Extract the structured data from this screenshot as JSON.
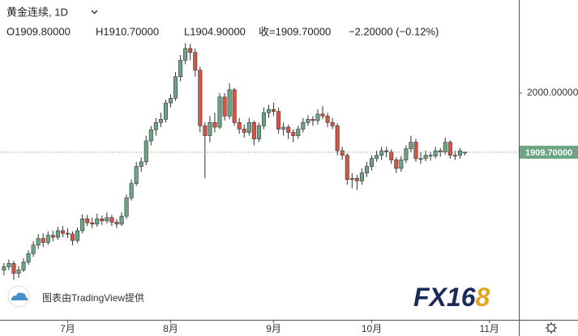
{
  "chart_data": {
    "type": "candlestick",
    "title": "黄金连续, 1D",
    "ohlc_header": [
      "O1909.80000",
      "H1910.70000",
      "L1904.90000",
      "收=1909.70000",
      "−2.20000 (−0.12%)"
    ],
    "attribution": "图表由TradingView提供",
    "logo": [
      "FX16",
      "8"
    ],
    "up_color": "#6ba583",
    "down_color": "#d75442",
    "open": [
      1730,
      1735,
      1740,
      1725,
      1730,
      1742,
      1755,
      1768,
      1778,
      1772,
      1783,
      1780,
      1790,
      1786,
      1785,
      1775,
      1790,
      1808,
      1802,
      1800,
      1808,
      1805,
      1810,
      1803,
      1800,
      1812,
      1840,
      1862,
      1888,
      1895,
      1927,
      1944,
      1955,
      1960,
      1985,
      1992,
      2025,
      2050,
      2068,
      2062,
      2035,
      1950,
      1935,
      1955,
      1948,
      1994,
      1965,
      2005,
      1955,
      1945,
      1940,
      1955,
      1930,
      1950,
      1970,
      1975,
      1972,
      1945,
      1948,
      1940,
      1935,
      1945,
      1955,
      1960,
      1958,
      1968,
      1965,
      1955,
      1950,
      1912,
      1905,
      1868,
      1870,
      1866,
      1878,
      1888,
      1900,
      1905,
      1912,
      1910,
      1898,
      1885,
      1898,
      1915,
      1925,
      1900,
      1900,
      1905,
      1904,
      1912,
      1910,
      1925,
      1905,
      1905,
      1909.8
    ],
    "high": [
      1741,
      1746,
      1744,
      1736,
      1748,
      1760,
      1774,
      1785,
      1786,
      1789,
      1790,
      1796,
      1797,
      1794,
      1789,
      1795,
      1815,
      1814,
      1810,
      1816,
      1813,
      1818,
      1814,
      1808,
      1818,
      1845,
      1868,
      1895,
      1902,
      1935,
      1950,
      1962,
      1970,
      1990,
      1998,
      2032,
      2058,
      2076,
      2075,
      2068,
      2040,
      1955,
      1965,
      1970,
      2000,
      2000,
      2015,
      2008,
      1962,
      1952,
      1962,
      1958,
      1955,
      1978,
      1982,
      1985,
      1978,
      1955,
      1952,
      1945,
      1950,
      1962,
      1966,
      1965,
      1975,
      1980,
      1970,
      1962,
      1954,
      1918,
      1908,
      1878,
      1875,
      1885,
      1895,
      1905,
      1912,
      1918,
      1918,
      1914,
      1902,
      1904,
      1920,
      1935,
      1930,
      1910,
      1912,
      1910,
      1918,
      1916,
      1932,
      1928,
      1912,
      1916,
      1910.7
    ],
    "low": [
      1722,
      1730,
      1715,
      1718,
      1727,
      1738,
      1750,
      1762,
      1765,
      1768,
      1774,
      1776,
      1780,
      1779,
      1768,
      1771,
      1786,
      1797,
      1794,
      1796,
      1799,
      1801,
      1797,
      1794,
      1797,
      1808,
      1836,
      1858,
      1880,
      1890,
      1920,
      1935,
      1948,
      1955,
      1978,
      1988,
      2018,
      2044,
      2050,
      2025,
      1940,
      1870,
      1925,
      1940,
      1945,
      1958,
      1960,
      1950,
      1938,
      1932,
      1935,
      1920,
      1925,
      1945,
      1962,
      1965,
      1938,
      1935,
      1930,
      1925,
      1930,
      1940,
      1950,
      1950,
      1952,
      1960,
      1948,
      1945,
      1905,
      1898,
      1860,
      1855,
      1852,
      1860,
      1872,
      1882,
      1895,
      1898,
      1902,
      1892,
      1878,
      1880,
      1893,
      1910,
      1895,
      1892,
      1896,
      1897,
      1900,
      1903,
      1906,
      1900,
      1898,
      1900,
      1904.9
    ],
    "close": [
      1735,
      1740,
      1725,
      1730,
      1742,
      1755,
      1768,
      1778,
      1772,
      1783,
      1780,
      1790,
      1786,
      1785,
      1775,
      1790,
      1808,
      1802,
      1800,
      1808,
      1805,
      1810,
      1803,
      1800,
      1812,
      1840,
      1862,
      1888,
      1895,
      1927,
      1944,
      1955,
      1960,
      1985,
      1992,
      2025,
      2050,
      2068,
      2062,
      2035,
      1950,
      1935,
      1955,
      1948,
      1994,
      1965,
      2005,
      1955,
      1945,
      1940,
      1955,
      1930,
      1950,
      1970,
      1975,
      1972,
      1945,
      1948,
      1940,
      1935,
      1945,
      1955,
      1960,
      1958,
      1968,
      1965,
      1955,
      1950,
      1912,
      1905,
      1868,
      1870,
      1866,
      1878,
      1888,
      1900,
      1905,
      1912,
      1910,
      1898,
      1885,
      1898,
      1915,
      1925,
      1900,
      1900,
      1905,
      1904,
      1912,
      1910,
      1925,
      1905,
      1905,
      1911.9,
      1909.7
    ],
    "xlim": [
      -0.8,
      105
    ],
    "xticks": [
      {
        "value": 13,
        "label": "7月"
      },
      {
        "value": 34,
        "label": "8月"
      },
      {
        "value": 55,
        "label": "9月"
      },
      {
        "value": 75,
        "label": "10月"
      },
      {
        "value": 99,
        "label": "11月"
      }
    ],
    "ylim": [
      1654,
      2142
    ],
    "yticks": [
      {
        "value": 2000,
        "label": "2000.00000"
      }
    ],
    "last_price": {
      "value": 1909.7,
      "label": "1909.70000"
    }
  }
}
